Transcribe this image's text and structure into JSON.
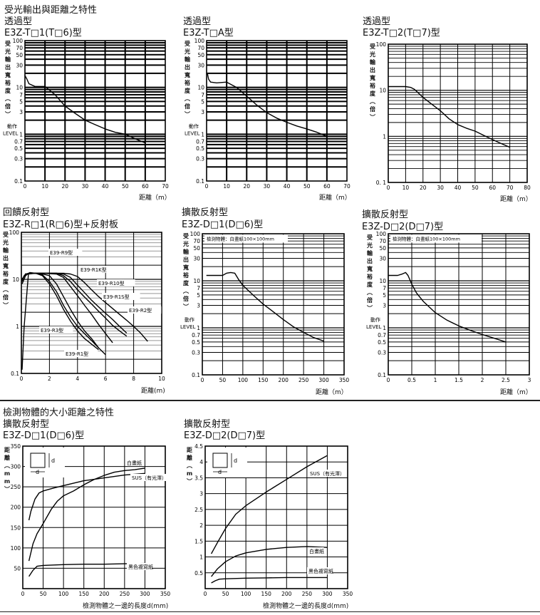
{
  "section1_title": "受光輸出與距離之特性",
  "section2_title": "檢測物體的大小距離之特性",
  "chart_data": [
    {
      "id": "c1",
      "type": "line",
      "category": "透過型",
      "model": "E3Z-T□1(T□6)型",
      "ylabel": "受光輸出寬裕度（倍）",
      "xlabel": "距離（m）",
      "yscale": "log",
      "ylim": [
        0.1,
        100
      ],
      "xlim": [
        0,
        70
      ],
      "xticks": [
        0,
        10,
        20,
        30,
        40,
        50,
        60,
        70
      ],
      "yticks": [
        "100",
        "70",
        "50",
        "30",
        "10",
        "7",
        "5",
        "3",
        "1",
        "0.7",
        "0.5",
        "0.3",
        "0.1"
      ],
      "ytick_values": [
        100,
        70,
        50,
        30,
        10,
        7,
        5,
        3,
        1,
        0.7,
        0.5,
        0.3,
        0.1
      ],
      "level_label": "動作\nLEVEL",
      "grid": true,
      "grid_style": "bold",
      "series": [
        {
          "name": "E3Z-T□1",
          "x": [
            0,
            1,
            2,
            5,
            10,
            15,
            20,
            25,
            30,
            35,
            40,
            45,
            50,
            55,
            60
          ],
          "y": [
            18,
            15,
            12,
            10.5,
            10.5,
            7,
            4,
            2.8,
            2,
            1.6,
            1.3,
            1.1,
            1,
            0.8,
            0.65
          ]
        }
      ]
    },
    {
      "id": "c2",
      "type": "line",
      "category": "透過型",
      "model": "E3Z-T□A型",
      "ylabel": "受光輸出寬裕度（倍）",
      "xlabel": "距離（m）",
      "yscale": "log",
      "ylim": [
        0.1,
        100
      ],
      "xlim": [
        0,
        70
      ],
      "xticks": [
        0,
        10,
        20,
        30,
        40,
        50,
        60,
        70
      ],
      "yticks": [
        "100",
        "70",
        "50",
        "30",
        "10",
        "7",
        "5",
        "3",
        "1",
        "0.7",
        "0.5",
        "0.3",
        "0.1"
      ],
      "ytick_values": [
        100,
        70,
        50,
        30,
        10,
        7,
        5,
        3,
        1,
        0.7,
        0.5,
        0.3,
        0.1
      ],
      "level_label": "動作\nLEVEL",
      "grid": true,
      "grid_style": "bold",
      "series": [
        {
          "name": "E3Z-T□A",
          "x": [
            0,
            0.5,
            1,
            2,
            5,
            10,
            15,
            20,
            25,
            30,
            35,
            40,
            45,
            50,
            55,
            60
          ],
          "y": [
            20,
            19,
            15,
            13,
            12.5,
            13,
            10,
            6.5,
            4.2,
            2.9,
            2.2,
            1.8,
            1.5,
            1.3,
            1.1,
            0.9
          ]
        }
      ]
    },
    {
      "id": "c3",
      "type": "line",
      "category": "透過型",
      "model": "E3Z-T□2(T□7)型",
      "ylabel": "受光輸出寬裕度（倍）",
      "xlabel": "距離（m）",
      "yscale": "log",
      "ylim": [
        0.1,
        100
      ],
      "xlim": [
        0,
        80
      ],
      "xticks": [
        0,
        10,
        20,
        30,
        40,
        50,
        60,
        70,
        80
      ],
      "yticks": [
        "100",
        "10",
        "1",
        "0. 1"
      ],
      "ytick_values": [
        100,
        10,
        1,
        0.1
      ],
      "grid": true,
      "grid_style": "thin",
      "series": [
        {
          "name": "E3Z-T□2",
          "x": [
            0,
            5,
            10,
            13,
            15,
            17,
            20,
            25,
            30,
            35,
            40,
            45,
            50,
            55,
            60,
            65,
            70
          ],
          "y": [
            12,
            12,
            12,
            11.5,
            10.5,
            9,
            7,
            5,
            3.6,
            2.4,
            1.8,
            1.5,
            1.3,
            1.05,
            0.85,
            0.7,
            0.58
          ]
        }
      ]
    },
    {
      "id": "c4",
      "type": "line",
      "category": "回饋反射型",
      "model": "E3Z-R□1(R□6)型+反射板",
      "ylabel": "受光輸出寬裕度（倍）",
      "xlabel": "距離(m)",
      "yscale": "log",
      "ylim": [
        0.1,
        100
      ],
      "xlim": [
        0,
        10
      ],
      "xticks": [
        0,
        2,
        4,
        6,
        8,
        10
      ],
      "yticks": [
        "100",
        "10",
        "1",
        "0.1"
      ],
      "ytick_values": [
        100,
        10,
        1,
        0.1
      ],
      "grid": true,
      "grid_style": "mixed",
      "series": [
        {
          "name": "E39-R9型",
          "x": [
            0.05,
            0.2,
            0.5,
            1.0,
            1.5,
            2.0,
            2.5,
            3.0,
            3.5,
            4.0,
            4.5,
            5.0,
            5.5
          ],
          "y": [
            9,
            12,
            13.5,
            13.5,
            12,
            8,
            4.5,
            2.3,
            1.3,
            0.8,
            0.55,
            0.42,
            0.32
          ]
        },
        {
          "name": "E39-R3型",
          "x": [
            0.05,
            0.2,
            0.5,
            1.0,
            1.5,
            2.0,
            2.5,
            3.0,
            3.5,
            4.0,
            4.5,
            5.0,
            5.5,
            6.0
          ],
          "y": [
            0.12,
            1,
            13,
            13.5,
            12.5,
            9,
            5.5,
            2.8,
            1.6,
            1.0,
            0.7,
            0.5,
            0.35,
            0.25
          ]
        },
        {
          "name": "E39-R1型",
          "x": [
            0.05,
            0.3,
            0.6,
            1.0,
            1.5,
            2.0,
            2.5,
            3.0,
            3.5,
            4.0,
            4.5,
            5.0,
            5.5
          ],
          "y": [
            8,
            12,
            14,
            13.5,
            13,
            12,
            8,
            4.3,
            2.3,
            1.3,
            0.8,
            0.55,
            0.35
          ]
        },
        {
          "name": "E39-R1K型",
          "x": [
            0.05,
            0.3,
            0.7,
            1.5,
            2.5,
            3.0,
            3.5,
            4.0,
            4.5,
            5.0,
            5.5,
            6.0,
            6.5
          ],
          "y": [
            10,
            13,
            13.5,
            13.5,
            13,
            11,
            7,
            4.5,
            2.8,
            1.8,
            1.1,
            0.7,
            0.45
          ]
        },
        {
          "name": "E39-R10型",
          "x": [
            0.05,
            0.3,
            0.7,
            1.5,
            2.5,
            3.0,
            3.5,
            4.0,
            4.5,
            5.0,
            5.5,
            6.0,
            6.5,
            7.0,
            7.5
          ],
          "y": [
            10,
            13,
            13.5,
            13.5,
            13.5,
            12,
            9,
            6,
            4.2,
            3,
            2.1,
            1.5,
            1.05,
            0.8,
            0.62
          ]
        },
        {
          "name": "E39-R1S型",
          "x": [
            0.05,
            0.3,
            0.7,
            1.5,
            2.5,
            3.0,
            3.5,
            4.0,
            4.5,
            5.0,
            5.5,
            6.0,
            6.5,
            7.0,
            7.5
          ],
          "y": [
            10,
            13,
            13.5,
            13.5,
            13.5,
            13,
            11,
            7.5,
            5.2,
            3.6,
            2.6,
            1.9,
            1.4,
            1.0,
            0.72
          ]
        },
        {
          "name": "E39-R2型",
          "x": [
            0.05,
            0.3,
            0.7,
            1.5,
            2.5,
            3.0,
            3.5,
            4.0,
            4.5,
            5.0,
            5.5,
            6.0,
            6.5,
            7.0,
            7.5,
            8.0,
            8.5,
            9.0
          ],
          "y": [
            10,
            13,
            13.5,
            13.5,
            13.5,
            13.5,
            13,
            11.5,
            8.5,
            6,
            4.3,
            3.2,
            2.4,
            1.8,
            1.35,
            1.0,
            0.72,
            0.48
          ]
        }
      ]
    },
    {
      "id": "c5",
      "type": "line",
      "category": "擴散反射型",
      "model": "E3Z-D□1(D□6)型",
      "ylabel": "受光輸出寬裕度（倍）",
      "xlabel": "距離（m）",
      "yscale": "log",
      "ylim": [
        0.1,
        100
      ],
      "xlim": [
        0,
        350
      ],
      "xticks": [
        0,
        50,
        100,
        150,
        200,
        250,
        300,
        350
      ],
      "yticks": [
        "100",
        "70",
        "50",
        "30",
        "10",
        "7",
        "5",
        "3",
        "1",
        "0.7",
        "0.5",
        "0.3",
        "0.1"
      ],
      "ytick_values": [
        100,
        70,
        50,
        30,
        10,
        7,
        5,
        3,
        1,
        0.7,
        0.5,
        0.3,
        0.1
      ],
      "level_label": "動作\nLEVEL",
      "grid": true,
      "grid_style": "thin",
      "annotation": "檢測物體：白畫紙100×100mm",
      "series": [
        {
          "name": "E3Z-D□1",
          "x": [
            10,
            30,
            50,
            60,
            70,
            80,
            90,
            100,
            125,
            150,
            175,
            200,
            225,
            250,
            275,
            300
          ],
          "y": [
            13,
            13,
            13,
            14.5,
            15,
            14.5,
            10.5,
            8,
            5,
            3.2,
            2.2,
            1.5,
            1.05,
            0.8,
            0.62,
            0.52
          ]
        }
      ]
    },
    {
      "id": "c6",
      "type": "line",
      "category": "擴散反射型",
      "model": "E3Z-D□2(D□7)型",
      "ylabel": "受光輸出寬裕度（倍）",
      "xlabel": "距離（m）",
      "yscale": "log",
      "ylim": [
        0.1,
        100
      ],
      "xlim": [
        0,
        3
      ],
      "xticks": [
        "0",
        "0.5",
        "1",
        "1.5",
        "2",
        "2.5",
        "3"
      ],
      "xtick_values": [
        0,
        0.5,
        1,
        1.5,
        2,
        2.5,
        3
      ],
      "yticks": [
        "100",
        "70",
        "50",
        "30",
        "10",
        "7",
        "5",
        "3",
        "1",
        "0.7",
        "0.5",
        "0.3",
        "0.1"
      ],
      "ytick_values": [
        100,
        70,
        50,
        30,
        10,
        7,
        5,
        3,
        1,
        0.7,
        0.5,
        0.3,
        0.1
      ],
      "level_label": "動作\nLEVEL",
      "grid": true,
      "grid_style": "thin",
      "annotation": "檢測物體：白畫紙100×100mm",
      "series": [
        {
          "name": "E3Z-D□2",
          "x": [
            0,
            0.1,
            0.2,
            0.3,
            0.37,
            0.42,
            0.5,
            0.6,
            0.75,
            1.0,
            1.25,
            1.5,
            1.75,
            2.0,
            2.25,
            2.5
          ],
          "y": [
            13,
            13,
            13,
            14,
            15,
            13,
            8.5,
            5.5,
            3.6,
            2.1,
            1.45,
            1.1,
            0.88,
            0.72,
            0.6,
            0.5
          ]
        }
      ]
    },
    {
      "id": "c7",
      "type": "line",
      "category": "擴散反射型",
      "model": "E3Z-D□1(D□6)型",
      "ylabel": "距離（mm）",
      "xlabel": "檢測物體之一邊的長度d(mm)",
      "yscale": "linear",
      "ylim": [
        0,
        350
      ],
      "xlim": [
        0,
        350
      ],
      "xticks": [
        0,
        50,
        100,
        150,
        200,
        250,
        300,
        350
      ],
      "yticks": [
        "350",
        "300",
        "250",
        "200",
        "150",
        "100",
        "50"
      ],
      "ytick_values": [
        350,
        300,
        250,
        200,
        150,
        100,
        50
      ],
      "grid": true,
      "grid_style": "thin",
      "inset_label": "d",
      "series": [
        {
          "name": "白畫紙",
          "x": [
            15,
            25,
            35,
            50,
            70,
            85,
            100,
            125,
            150,
            175,
            200,
            225,
            250,
            275,
            300
          ],
          "y": [
            68,
            110,
            135,
            160,
            195,
            215,
            228,
            240,
            255,
            268,
            278,
            286,
            290,
            292,
            296
          ]
        },
        {
          "name": "SUS（有光澤）",
          "x": [
            15,
            20,
            30,
            40,
            50,
            75,
            100,
            150,
            200,
            250,
            300
          ],
          "y": [
            168,
            190,
            220,
            235,
            240,
            247,
            253,
            265,
            272,
            279,
            283
          ]
        },
        {
          "name": "黑色複寫紙",
          "x": [
            15,
            25,
            35,
            50,
            100,
            150,
            200,
            250,
            300
          ],
          "y": [
            30,
            45,
            55,
            57,
            59,
            60,
            60,
            61,
            62
          ]
        }
      ]
    },
    {
      "id": "c8",
      "type": "line",
      "category": "擴散反射型",
      "model": "E3Z-D□2(D□7)型",
      "ylabel": "距離（m）",
      "xlabel": "檢測物體之一邊的長度d(mm)",
      "yscale": "linear",
      "ylim": [
        0,
        4.5
      ],
      "xlim": [
        0,
        350
      ],
      "xticks": [
        0,
        50,
        100,
        150,
        200,
        250,
        300,
        350
      ],
      "yticks": [
        "4.5",
        "4",
        "3.5",
        "3",
        "2.5",
        "2",
        "1.5",
        "1",
        "0.5"
      ],
      "ytick_values": [
        4.5,
        4,
        3.5,
        3,
        2.5,
        2,
        1.5,
        1,
        0.5
      ],
      "grid": true,
      "grid_style": "thin",
      "inset_label": "d",
      "series": [
        {
          "name": "SUS（有光澤）",
          "x": [
            15,
            30,
            50,
            75,
            100,
            150,
            200,
            250,
            300
          ],
          "y": [
            1.1,
            1.45,
            1.9,
            2.35,
            2.62,
            3.05,
            3.45,
            3.85,
            4.2
          ]
        },
        {
          "name": "白畫紙",
          "x": [
            15,
            30,
            50,
            75,
            100,
            150,
            200,
            250,
            300
          ],
          "y": [
            0.38,
            0.62,
            0.85,
            1.03,
            1.13,
            1.24,
            1.3,
            1.33,
            1.3
          ]
        },
        {
          "name": "黑色複寫紙",
          "x": [
            15,
            25,
            35,
            50,
            100,
            150,
            200,
            250,
            300
          ],
          "y": [
            0.18,
            0.25,
            0.3,
            0.31,
            0.33,
            0.34,
            0.35,
            0.35,
            0.35
          ]
        }
      ]
    }
  ]
}
